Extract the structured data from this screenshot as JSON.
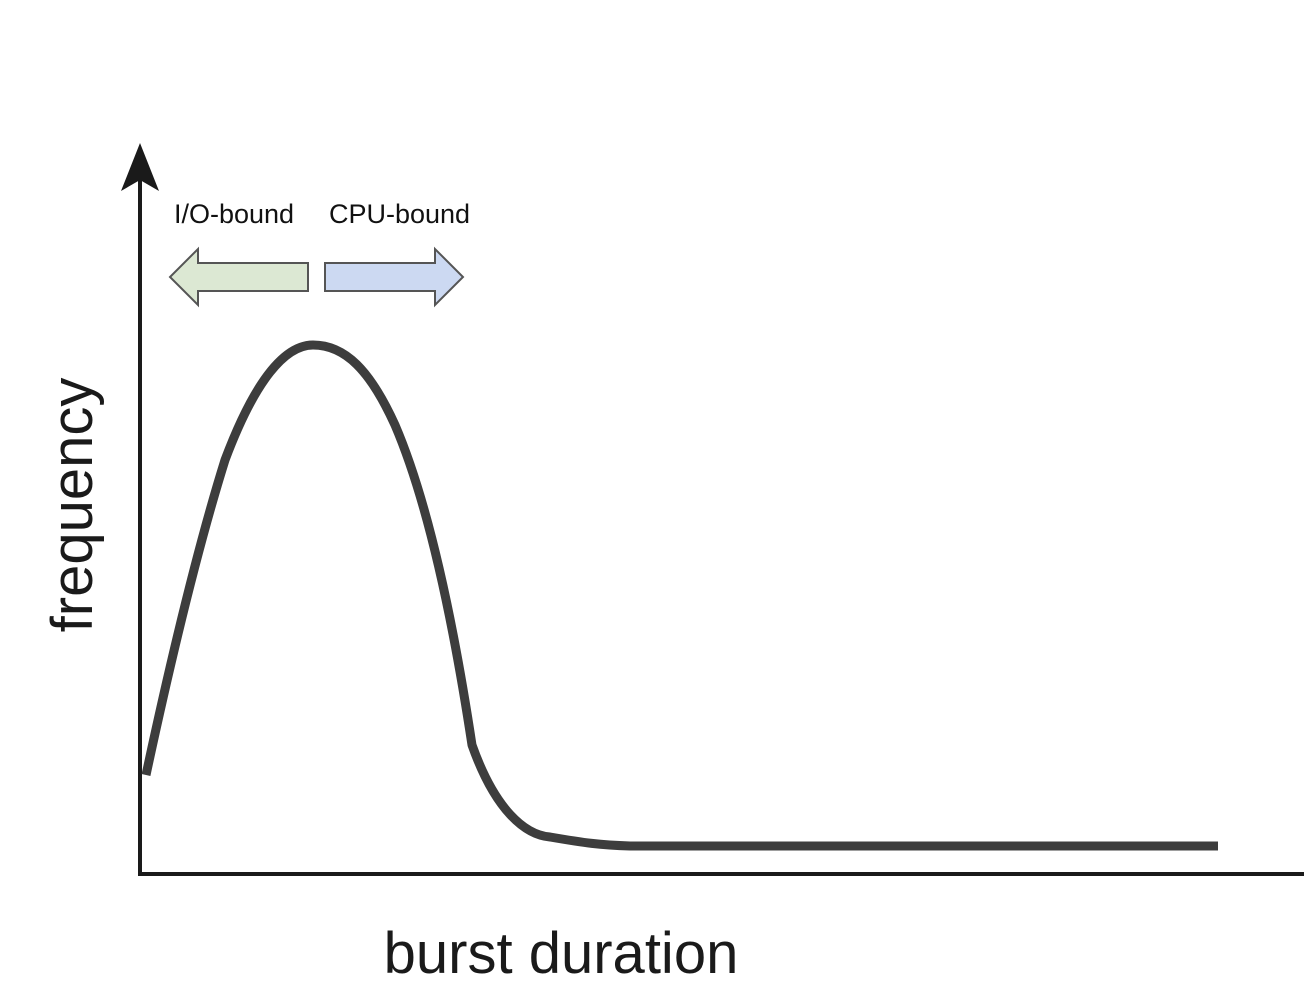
{
  "chart_data": {
    "type": "line",
    "title": "",
    "xlabel": "burst duration",
    "ylabel": "frequency",
    "ticks": "none",
    "grid": false,
    "series": [
      {
        "curve": "frequency vs burst duration",
        "shape": "rises sharply from the y-axis to a single peak at short burst durations, falls steeply, then flattens into a long low tail toward long burst durations",
        "color": "#3d3d3d"
      }
    ],
    "annotations": [
      {
        "text": "I/O-bound",
        "arrow_direction": "left",
        "arrow_fill": "#dce8d3"
      },
      {
        "text": "CPU-bound",
        "arrow_direction": "right",
        "arrow_fill": "#ccd9f2"
      }
    ]
  }
}
